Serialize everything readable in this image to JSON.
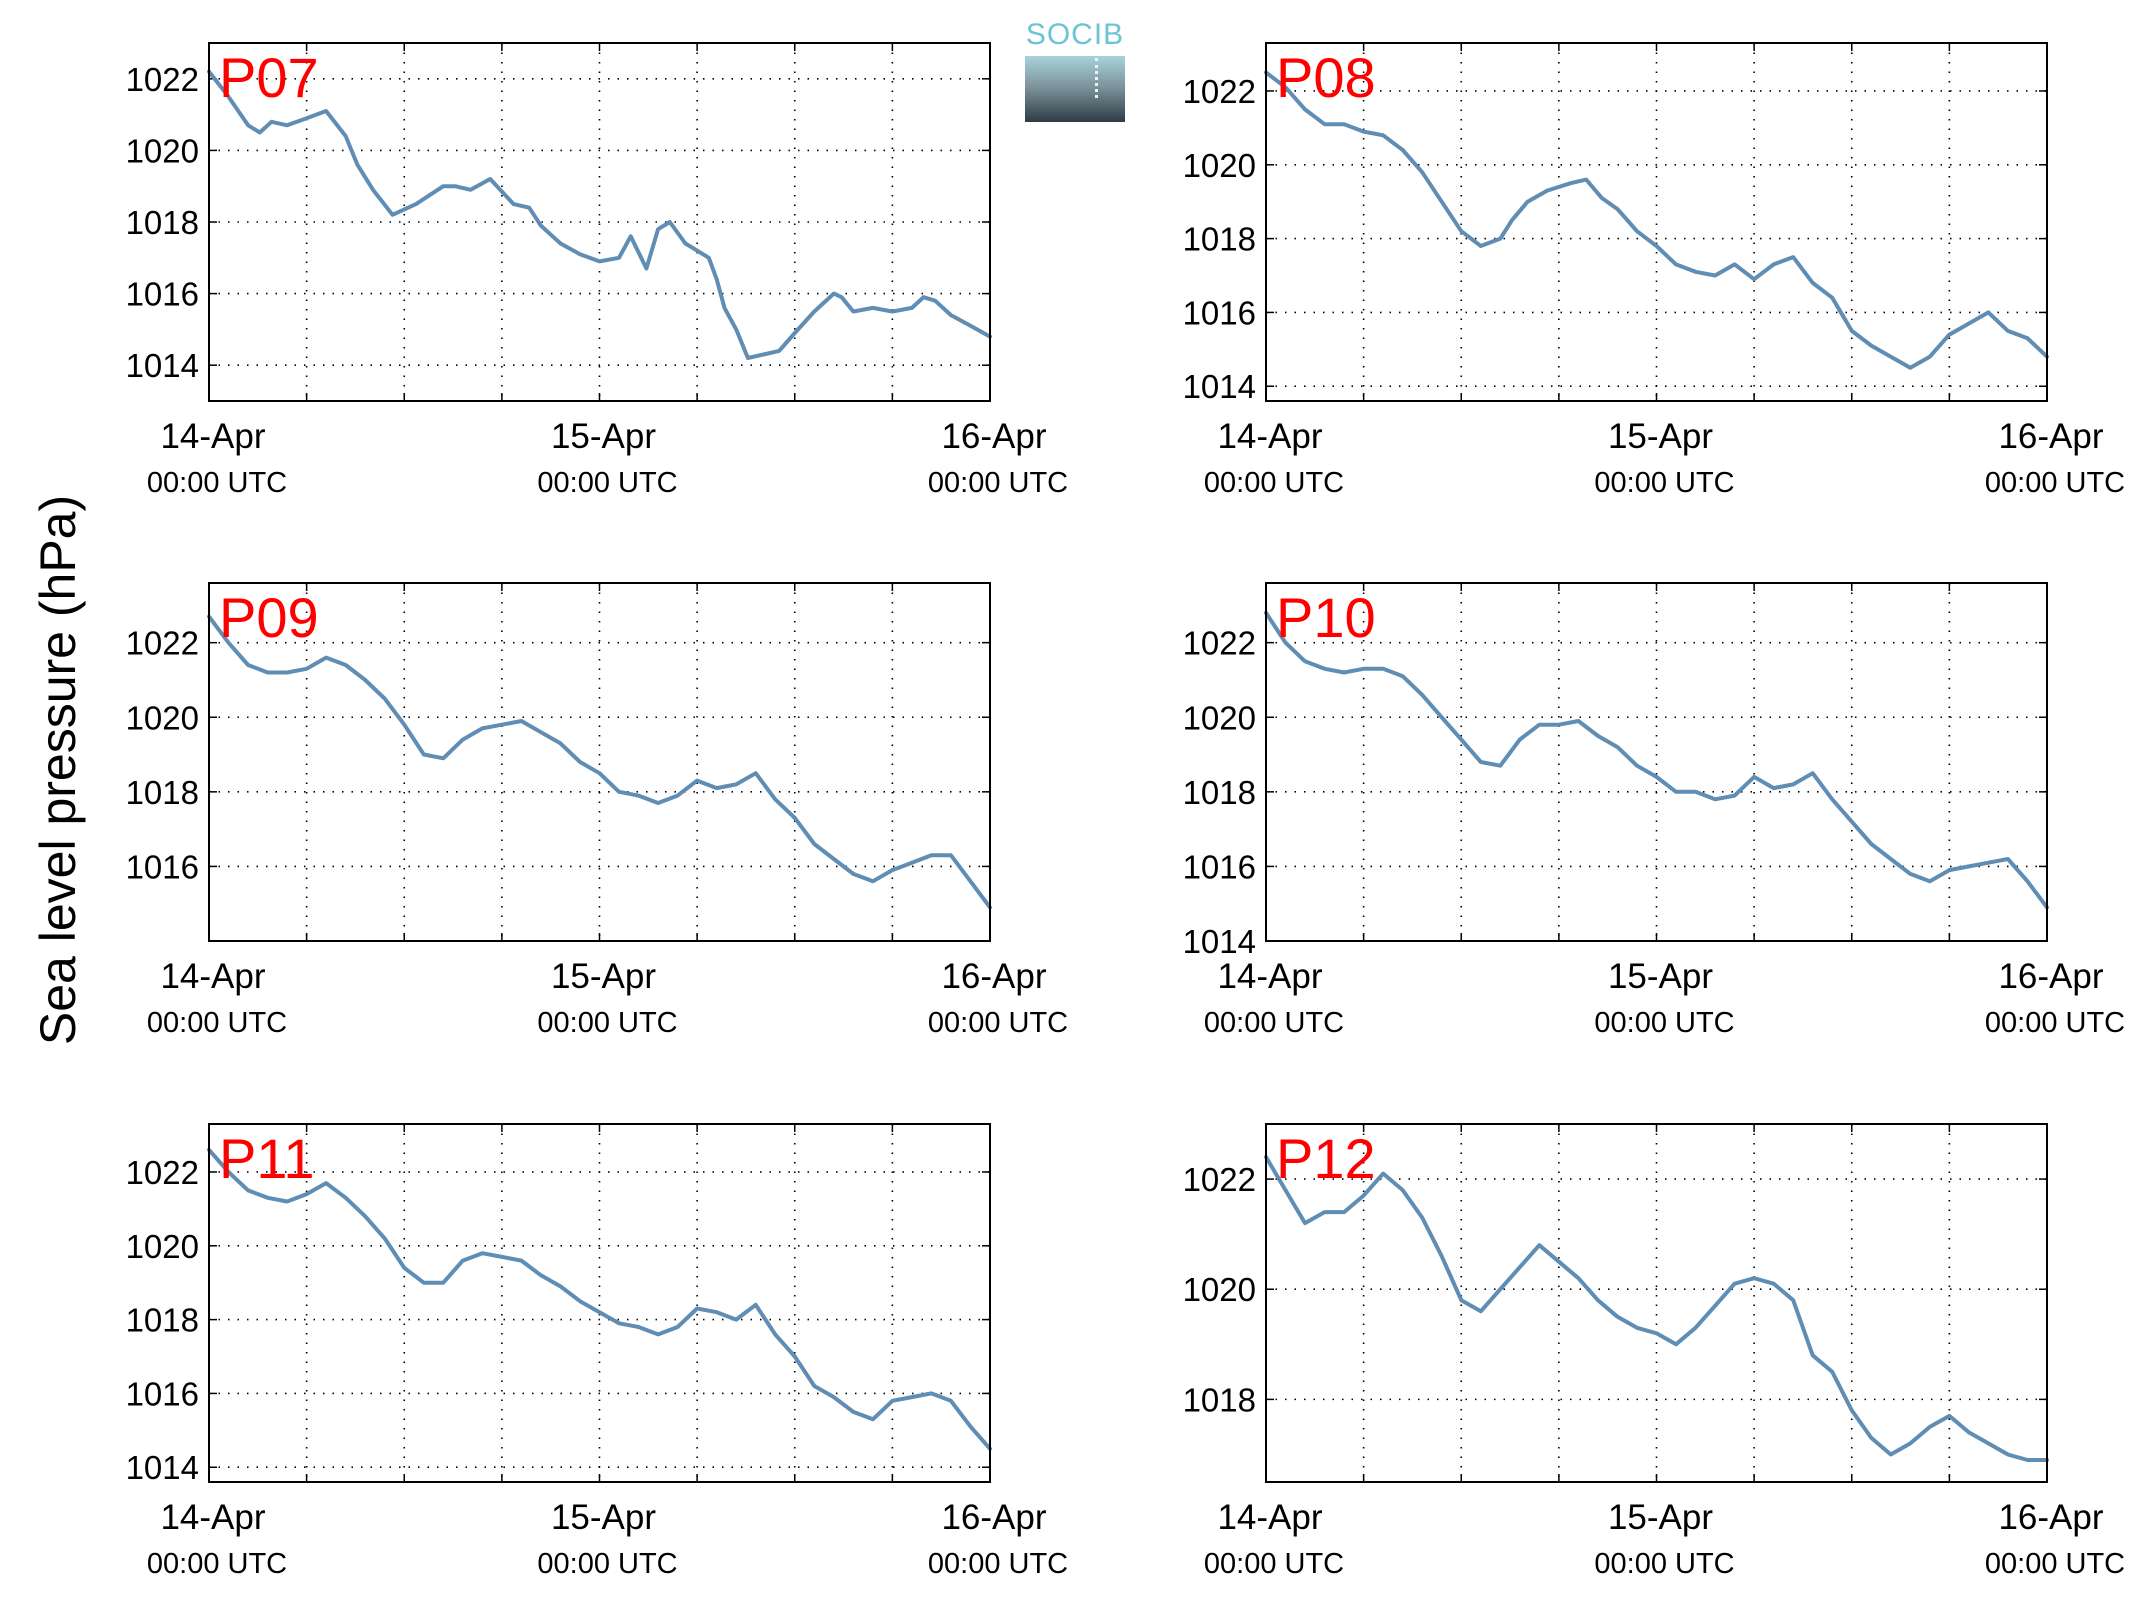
{
  "figure": {
    "ylabel": "Sea level pressure (hPa)",
    "logo_text": "SOCIB"
  },
  "chart_data": [
    {
      "type": "line",
      "title": "P07",
      "x_ticks": [
        {
          "pos": 0,
          "day": "14-Apr",
          "time": "00:00 UTC"
        },
        {
          "pos": 1,
          "day": "15-Apr",
          "time": "00:00 UTC"
        },
        {
          "pos": 2,
          "day": "16-Apr",
          "time": "00:00 UTC"
        }
      ],
      "xlim": [
        0,
        2
      ],
      "ylim": [
        1013,
        1023
      ],
      "yticks": [
        1014,
        1016,
        1018,
        1020,
        1022
      ],
      "grid": true,
      "x": [
        0,
        0.05,
        0.1,
        0.13,
        0.16,
        0.2,
        0.25,
        0.3,
        0.35,
        0.38,
        0.42,
        0.47,
        0.53,
        0.6,
        0.63,
        0.67,
        0.72,
        0.78,
        0.82,
        0.85,
        0.88,
        0.9,
        0.95,
        1.0,
        1.05,
        1.08,
        1.12,
        1.15,
        1.18,
        1.22,
        1.25,
        1.28,
        1.3,
        1.32,
        1.35,
        1.38,
        1.42,
        1.46,
        1.5,
        1.55,
        1.6,
        1.62,
        1.65,
        1.7,
        1.75,
        1.8,
        1.83,
        1.86,
        1.9,
        1.95,
        2.0
      ],
      "y": [
        1022.2,
        1021.5,
        1020.7,
        1020.5,
        1020.8,
        1020.7,
        1020.9,
        1021.1,
        1020.4,
        1019.6,
        1018.9,
        1018.2,
        1018.5,
        1019.0,
        1019.0,
        1018.9,
        1019.2,
        1018.5,
        1018.4,
        1017.9,
        1017.6,
        1017.4,
        1017.1,
        1016.9,
        1017.0,
        1017.6,
        1016.7,
        1017.8,
        1018.0,
        1017.4,
        1017.2,
        1017.0,
        1016.4,
        1015.6,
        1015.0,
        1014.2,
        1014.3,
        1014.4,
        1014.9,
        1015.5,
        1016.0,
        1015.9,
        1015.5,
        1015.6,
        1015.5,
        1015.6,
        1015.9,
        1015.8,
        1015.4,
        1015.1,
        1014.8
      ]
    },
    {
      "type": "line",
      "title": "P08",
      "x_ticks": [
        {
          "pos": 0,
          "day": "14-Apr",
          "time": "00:00 UTC"
        },
        {
          "pos": 1,
          "day": "15-Apr",
          "time": "00:00 UTC"
        },
        {
          "pos": 2,
          "day": "16-Apr",
          "time": "00:00 UTC"
        }
      ],
      "xlim": [
        0,
        2
      ],
      "ylim": [
        1013.6,
        1023.3
      ],
      "yticks": [
        1014,
        1016,
        1018,
        1020,
        1022
      ],
      "grid": true,
      "x": [
        0,
        0.05,
        0.1,
        0.15,
        0.2,
        0.25,
        0.3,
        0.35,
        0.4,
        0.45,
        0.5,
        0.55,
        0.6,
        0.63,
        0.67,
        0.72,
        0.78,
        0.82,
        0.86,
        0.9,
        0.95,
        1.0,
        1.05,
        1.1,
        1.15,
        1.2,
        1.25,
        1.3,
        1.35,
        1.4,
        1.45,
        1.5,
        1.55,
        1.6,
        1.65,
        1.7,
        1.75,
        1.8,
        1.85,
        1.9,
        1.95,
        2.0
      ],
      "y": [
        1022.5,
        1022.1,
        1021.5,
        1021.1,
        1021.1,
        1020.9,
        1020.8,
        1020.4,
        1019.8,
        1019.0,
        1018.2,
        1017.8,
        1018.0,
        1018.5,
        1019.0,
        1019.3,
        1019.5,
        1019.6,
        1019.1,
        1018.8,
        1018.2,
        1017.8,
        1017.3,
        1017.1,
        1017.0,
        1017.3,
        1016.9,
        1017.3,
        1017.5,
        1016.8,
        1016.4,
        1015.5,
        1015.1,
        1014.8,
        1014.5,
        1014.8,
        1015.4,
        1015.7,
        1016.0,
        1015.5,
        1015.3,
        1014.8
      ]
    },
    {
      "type": "line",
      "title": "P09",
      "x_ticks": [
        {
          "pos": 0,
          "day": "14-Apr",
          "time": "00:00 UTC"
        },
        {
          "pos": 1,
          "day": "15-Apr",
          "time": "00:00 UTC"
        },
        {
          "pos": 2,
          "day": "16-Apr",
          "time": "00:00 UTC"
        }
      ],
      "xlim": [
        0,
        2
      ],
      "ylim": [
        1014.0,
        1023.6
      ],
      "yticks": [
        1016,
        1018,
        1020,
        1022
      ],
      "grid": true,
      "x": [
        0,
        0.05,
        0.1,
        0.15,
        0.2,
        0.25,
        0.3,
        0.35,
        0.4,
        0.45,
        0.5,
        0.55,
        0.6,
        0.65,
        0.7,
        0.75,
        0.8,
        0.85,
        0.9,
        0.95,
        1.0,
        1.05,
        1.1,
        1.15,
        1.2,
        1.25,
        1.3,
        1.35,
        1.4,
        1.45,
        1.5,
        1.55,
        1.6,
        1.65,
        1.7,
        1.75,
        1.8,
        1.85,
        1.9,
        1.95,
        2.0
      ],
      "y": [
        1022.7,
        1022.0,
        1021.4,
        1021.2,
        1021.2,
        1021.3,
        1021.6,
        1021.4,
        1021.0,
        1020.5,
        1019.8,
        1019.0,
        1018.9,
        1019.4,
        1019.7,
        1019.8,
        1019.9,
        1019.6,
        1019.3,
        1018.8,
        1018.5,
        1018.0,
        1017.9,
        1017.7,
        1017.9,
        1018.3,
        1018.1,
        1018.2,
        1018.5,
        1017.8,
        1017.3,
        1016.6,
        1016.2,
        1015.8,
        1015.6,
        1015.9,
        1016.1,
        1016.3,
        1016.3,
        1015.6,
        1014.9
      ]
    },
    {
      "type": "line",
      "title": "P10",
      "x_ticks": [
        {
          "pos": 0,
          "day": "14-Apr",
          "time": "00:00 UTC"
        },
        {
          "pos": 1,
          "day": "15-Apr",
          "time": "00:00 UTC"
        },
        {
          "pos": 2,
          "day": "16-Apr",
          "time": "00:00 UTC"
        }
      ],
      "xlim": [
        0,
        2
      ],
      "ylim": [
        1014.0,
        1023.6
      ],
      "yticks": [
        1014,
        1016,
        1018,
        1020,
        1022
      ],
      "grid": true,
      "x": [
        0,
        0.05,
        0.1,
        0.15,
        0.2,
        0.25,
        0.3,
        0.35,
        0.4,
        0.45,
        0.5,
        0.55,
        0.6,
        0.65,
        0.7,
        0.75,
        0.8,
        0.85,
        0.9,
        0.95,
        1.0,
        1.05,
        1.1,
        1.15,
        1.2,
        1.25,
        1.3,
        1.35,
        1.4,
        1.45,
        1.5,
        1.55,
        1.6,
        1.65,
        1.7,
        1.75,
        1.8,
        1.85,
        1.9,
        1.95,
        2.0
      ],
      "y": [
        1022.8,
        1022.0,
        1021.5,
        1021.3,
        1021.2,
        1021.3,
        1021.3,
        1021.1,
        1020.6,
        1020.0,
        1019.4,
        1018.8,
        1018.7,
        1019.4,
        1019.8,
        1019.8,
        1019.9,
        1019.5,
        1019.2,
        1018.7,
        1018.4,
        1018.0,
        1018.0,
        1017.8,
        1017.9,
        1018.4,
        1018.1,
        1018.2,
        1018.5,
        1017.8,
        1017.2,
        1016.6,
        1016.2,
        1015.8,
        1015.6,
        1015.9,
        1016.0,
        1016.1,
        1016.2,
        1015.6,
        1014.9
      ]
    },
    {
      "type": "line",
      "title": "P11",
      "x_ticks": [
        {
          "pos": 0,
          "day": "14-Apr",
          "time": "00:00 UTC"
        },
        {
          "pos": 1,
          "day": "15-Apr",
          "time": "00:00 UTC"
        },
        {
          "pos": 2,
          "day": "16-Apr",
          "time": "00:00 UTC"
        }
      ],
      "xlim": [
        0,
        2
      ],
      "ylim": [
        1013.6,
        1023.3
      ],
      "yticks": [
        1014,
        1016,
        1018,
        1020,
        1022
      ],
      "grid": true,
      "x": [
        0,
        0.05,
        0.1,
        0.15,
        0.2,
        0.25,
        0.3,
        0.35,
        0.4,
        0.45,
        0.5,
        0.55,
        0.6,
        0.65,
        0.7,
        0.75,
        0.8,
        0.85,
        0.9,
        0.95,
        1.0,
        1.05,
        1.1,
        1.15,
        1.2,
        1.25,
        1.3,
        1.35,
        1.4,
        1.45,
        1.5,
        1.55,
        1.6,
        1.65,
        1.7,
        1.75,
        1.8,
        1.85,
        1.9,
        1.95,
        2.0
      ],
      "y": [
        1022.6,
        1022.0,
        1021.5,
        1021.3,
        1021.2,
        1021.4,
        1021.7,
        1021.3,
        1020.8,
        1020.2,
        1019.4,
        1019.0,
        1019.0,
        1019.6,
        1019.8,
        1019.7,
        1019.6,
        1019.2,
        1018.9,
        1018.5,
        1018.2,
        1017.9,
        1017.8,
        1017.6,
        1017.8,
        1018.3,
        1018.2,
        1018.0,
        1018.4,
        1017.6,
        1017.0,
        1016.2,
        1015.9,
        1015.5,
        1015.3,
        1015.8,
        1015.9,
        1016.0,
        1015.8,
        1015.1,
        1014.5
      ]
    },
    {
      "type": "line",
      "title": "P12",
      "x_ticks": [
        {
          "pos": 0,
          "day": "14-Apr",
          "time": "00:00 UTC"
        },
        {
          "pos": 1,
          "day": "15-Apr",
          "time": "00:00 UTC"
        },
        {
          "pos": 2,
          "day": "16-Apr",
          "time": "00:00 UTC"
        }
      ],
      "xlim": [
        0,
        2
      ],
      "ylim": [
        1016.5,
        1023.0
      ],
      "yticks": [
        1018,
        1020,
        1022
      ],
      "grid": true,
      "x": [
        0,
        0.05,
        0.1,
        0.15,
        0.2,
        0.25,
        0.3,
        0.35,
        0.4,
        0.45,
        0.5,
        0.55,
        0.6,
        0.65,
        0.7,
        0.75,
        0.8,
        0.85,
        0.9,
        0.95,
        1.0,
        1.05,
        1.1,
        1.15,
        1.2,
        1.25,
        1.3,
        1.35,
        1.4,
        1.45,
        1.5,
        1.55,
        1.6,
        1.65,
        1.7,
        1.75,
        1.8,
        1.85,
        1.9,
        1.95,
        2.0
      ],
      "y": [
        1022.4,
        1021.8,
        1021.2,
        1021.4,
        1021.4,
        1021.7,
        1022.1,
        1021.8,
        1021.3,
        1020.6,
        1019.8,
        1019.6,
        1020.0,
        1020.4,
        1020.8,
        1020.5,
        1020.2,
        1019.8,
        1019.5,
        1019.3,
        1019.2,
        1019.0,
        1019.3,
        1019.7,
        1020.1,
        1020.2,
        1020.1,
        1019.8,
        1018.8,
        1018.5,
        1017.8,
        1017.3,
        1017.0,
        1017.2,
        1017.5,
        1017.7,
        1017.4,
        1017.2,
        1017.0,
        1016.9,
        1016.9
      ]
    }
  ]
}
